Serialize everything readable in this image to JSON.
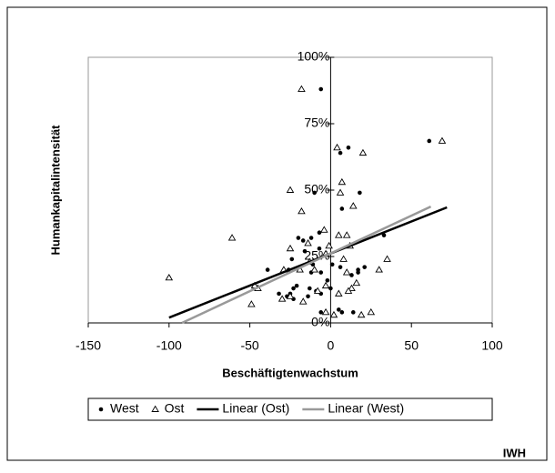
{
  "chart_data": {
    "type": "scatter",
    "x_label": "Beschäftigtenwachstum",
    "y_label": "Humankapitalintensität",
    "source": "IWH",
    "xlim": [
      -150,
      100
    ],
    "xticks": [
      -150,
      -100,
      -50,
      0,
      50,
      100
    ],
    "ylim": [
      0,
      100
    ],
    "yticks": [
      {
        "value": 0,
        "label": "0%"
      },
      {
        "value": 25,
        "label": "25%"
      },
      {
        "value": 50,
        "label": "50%"
      },
      {
        "value": 75,
        "label": "75%"
      },
      {
        "value": 100,
        "label": "100%"
      }
    ],
    "grid": false,
    "legend": "bottom",
    "series": [
      {
        "name": "West",
        "type": "scatter",
        "marker": "circle",
        "color": "#000000",
        "x": [
          -100,
          -6,
          61,
          6,
          11,
          7,
          18,
          -10,
          -7,
          -12,
          -17,
          -20,
          -39,
          21,
          17,
          -16,
          -24,
          -11,
          -7,
          -6,
          -2,
          0,
          -6,
          -9,
          -13,
          -21,
          -23,
          -27,
          -25,
          -23,
          -32,
          -14,
          5,
          7,
          -6,
          14,
          13,
          17,
          6,
          1,
          -12,
          -26,
          33
        ],
        "values": [
          17,
          88,
          68.5,
          64,
          66,
          43,
          49,
          49,
          34,
          32,
          31,
          32,
          20,
          21,
          20,
          27,
          24,
          22,
          28,
          19,
          16,
          13,
          11,
          12,
          13,
          14,
          13,
          10,
          11,
          9,
          11,
          10,
          5,
          4,
          4,
          4,
          18,
          19,
          21,
          22,
          19,
          20,
          33
        ]
      },
      {
        "name": "Ost",
        "type": "scatter",
        "marker": "triangle",
        "color": "#000000",
        "x": [
          -100,
          -61,
          -18,
          4,
          20,
          69,
          7,
          6,
          -25,
          -18,
          14,
          10,
          5,
          -4,
          30,
          35,
          12,
          -1,
          -14,
          -25,
          -29,
          -13,
          -10,
          -3,
          8,
          13,
          11,
          16,
          -47,
          -45,
          -49,
          -30,
          -25,
          -17,
          -3,
          2,
          19,
          25,
          -8,
          5,
          -3,
          -19,
          10
        ],
        "values": [
          17,
          32,
          88,
          66,
          64,
          68.5,
          53,
          49,
          50,
          42,
          44,
          33,
          33,
          35,
          20,
          24,
          29,
          29,
          30,
          28,
          20,
          23,
          20,
          26,
          24,
          13,
          12,
          15,
          14,
          13,
          7,
          9,
          10,
          8,
          4,
          3,
          3,
          4,
          12,
          11,
          14,
          20,
          19
        ]
      },
      {
        "name": "Linear (Ost)",
        "type": "line",
        "color": "#000000",
        "x": [
          -100,
          72
        ],
        "values": [
          2,
          43.5
        ]
      },
      {
        "name": "Linear (West)",
        "type": "line",
        "color": "#999999",
        "x": [
          -92,
          62
        ],
        "values": [
          0,
          43.8
        ]
      }
    ]
  }
}
